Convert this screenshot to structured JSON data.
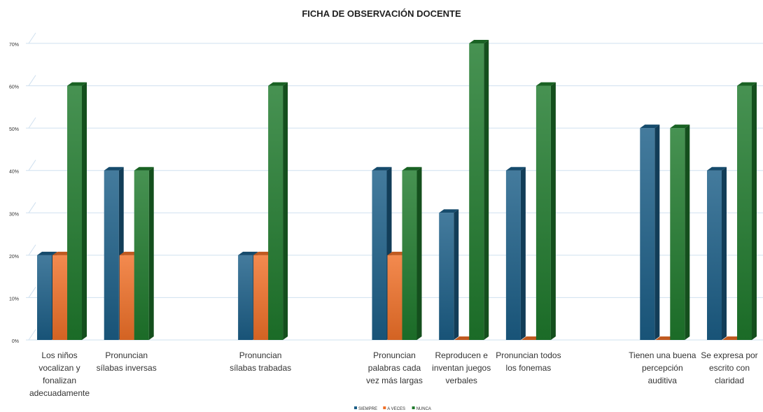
{
  "chart_data": {
    "type": "bar",
    "title": "FICHA DE OBSERVACIÓN DOCENTE",
    "categories": [
      "Los niños vocalizan y fonalizan adecuadamente",
      "Pronuncian sílabas inversas",
      "",
      "Pronuncian sílabas trabadas",
      "",
      "Pronuncian palabras cada vez más largas",
      "Reproducen e inventan juegos verbales",
      "Pronuncian todos los fonemas",
      "",
      "Tienen una buena percepción auditiva",
      "Se expresa por escrito con claridad"
    ],
    "category_lines": [
      [
        "Los niños",
        "vocalizan y",
        "fonalizan",
        "adecuadamente"
      ],
      [
        "Pronuncian",
        "sílabas inversas"
      ],
      [],
      [
        "Pronuncian",
        "sílabas trabadas"
      ],
      [],
      [
        "Pronuncian",
        "palabras cada",
        "vez más largas"
      ],
      [
        "Reproducen e",
        "inventan juegos",
        "verbales"
      ],
      [
        "Pronuncian todos",
        "los fonemas"
      ],
      [],
      [
        "Tienen una buena",
        "percepción",
        "auditiva"
      ],
      [
        "Se expresa por",
        "escrito con",
        "claridad"
      ]
    ],
    "series": [
      {
        "name": "SIEMPRE",
        "color": "#1b5e87",
        "values": [
          20,
          40,
          null,
          20,
          null,
          40,
          30,
          40,
          null,
          50,
          40
        ]
      },
      {
        "name": "A VECES",
        "color": "#f07028",
        "values": [
          20,
          20,
          null,
          20,
          null,
          20,
          0,
          0,
          null,
          0,
          0
        ]
      },
      {
        "name": "NUNCA",
        "color": "#1f7a2c",
        "values": [
          60,
          40,
          null,
          60,
          null,
          40,
          70,
          60,
          null,
          50,
          60
        ]
      }
    ],
    "yticks": [
      "0%",
      "10%",
      "20%",
      "30%",
      "40%",
      "50%",
      "60%",
      "70%"
    ],
    "ylim": [
      0,
      70
    ],
    "unit": "%",
    "grid": true,
    "legend_position": "bottom"
  }
}
